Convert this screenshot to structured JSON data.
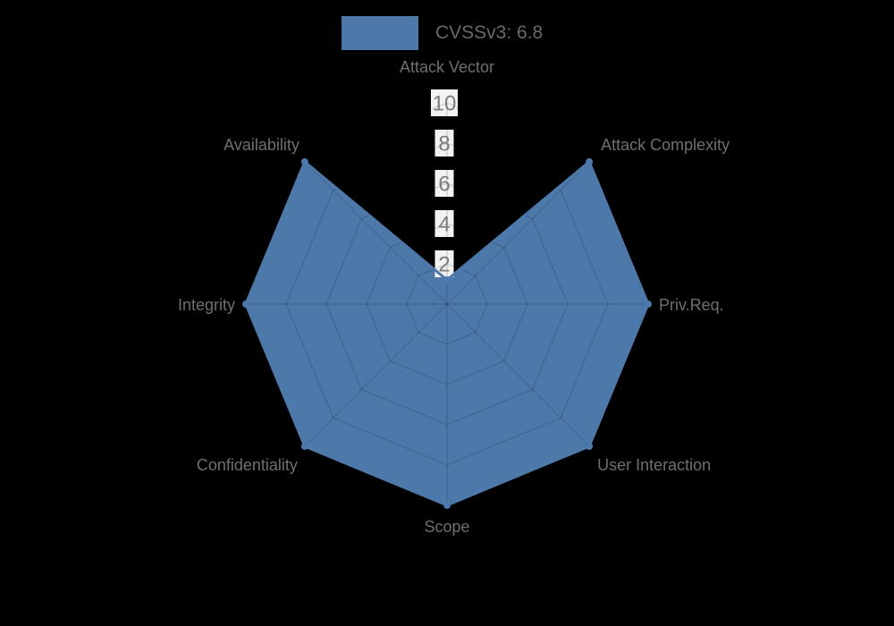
{
  "legend": {
    "label": "CVSSv3: 6.8"
  },
  "chart_data": {
    "type": "radar",
    "title": "",
    "categories": [
      "Attack Vector",
      "Attack Complexity",
      "Priv.Req.",
      "User Interaction",
      "Scope",
      "Confidentiality",
      "Integrity",
      "Availability"
    ],
    "series": [
      {
        "name": "CVSSv3: 6.8",
        "values": [
          1.2,
          10,
          10,
          10,
          10,
          10,
          10,
          10
        ]
      }
    ],
    "ticks": [
      2,
      4,
      6,
      8,
      10
    ],
    "rmin": 0,
    "rmax": 10,
    "grid": "polygon",
    "legend_position": "top",
    "colors": {
      "fill": "#4d79aa",
      "stroke": "#4d79aa",
      "grid": "rgba(0,0,0,0.13)",
      "tick_text": "#7c7c7c",
      "tick_backdrop": "rgba(255,255,255,0.95)",
      "label_text": "#6f6f6f",
      "background": "#000000"
    }
  }
}
